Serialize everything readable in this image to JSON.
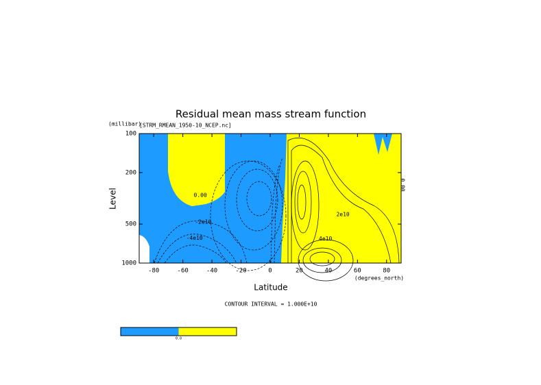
{
  "chart_data": {
    "type": "contour",
    "title": "Residual mean mass stream function",
    "subtitle": "[STRM_RMEAN_1950-10_NCEP.nc]",
    "y_unit": "(millibar)",
    "x_unit": "(degrees_north)",
    "xlabel": "Latitude",
    "ylabel": "Level",
    "xlim": [
      -90,
      90
    ],
    "xticks": [
      -80,
      -60,
      -40,
      -20,
      0,
      20,
      40,
      60,
      80
    ],
    "ylim": [
      100,
      1000
    ],
    "yticks": [
      100,
      200,
      500,
      1000
    ],
    "ylog": true,
    "y_reversed": true,
    "contour_labels": [
      {
        "text": "0.00",
        "x": -48,
        "y": 300
      },
      {
        "text": "-2e10",
        "x": -46,
        "y": 480
      },
      {
        "text": "-4e10",
        "x": -52,
        "y": 640
      },
      {
        "text": "2e10",
        "x": 50,
        "y": 420
      },
      {
        "text": "4e10",
        "x": 38,
        "y": 650
      }
    ],
    "annotation": "CONTOUR INTERVAL = 1.000E+10",
    "colorbar": {
      "colors": [
        "#1e9bff",
        "#ffff00"
      ],
      "labels": [
        "0.0"
      ]
    }
  }
}
